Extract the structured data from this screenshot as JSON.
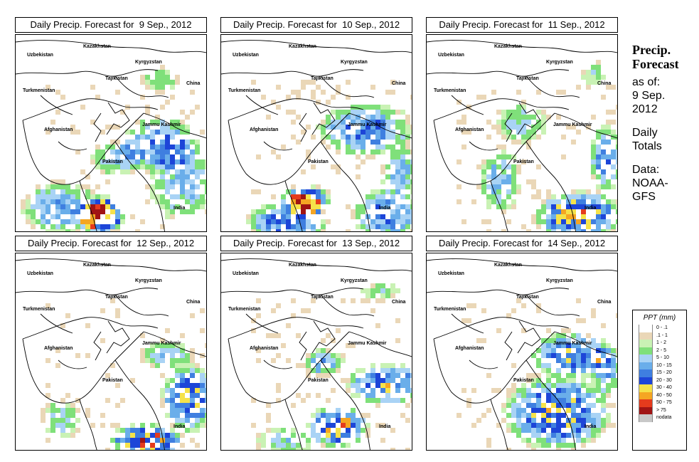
{
  "panels": [
    {
      "title": "Daily Precip. Forecast for  9 Sep., 2012"
    },
    {
      "title": "Daily Precip. Forecast for  10 Sep., 2012"
    },
    {
      "title": "Daily Precip. Forecast for  11 Sep., 2012"
    },
    {
      "title": "Daily Precip. Forecast for  12 Sep., 2012"
    },
    {
      "title": "Daily Precip. Forecast for  13 Sep., 2012"
    },
    {
      "title": "Daily Precip. Forecast for  14 Sep., 2012"
    }
  ],
  "map_labels": {
    "kazakhstan": "Kazakhstan",
    "uzbekistan": "Uzbekistan",
    "kyrgyzstan": "Kyrgyzstan",
    "tajikistan": "Tajikistan",
    "turkmenistan": "Turkmenistan",
    "china": "China",
    "afghanistan": "Afghanistan",
    "jammu_kashmir": "Jammu Kashmir",
    "pakistan": "Pakistan",
    "india": "India"
  },
  "side_info": {
    "title_line1": "Precip.",
    "title_line2": "Forecast",
    "asof_line1": "as of:",
    "asof_line2": "9 Sep.",
    "asof_line3": "2012",
    "totals_line1": "Daily",
    "totals_line2": "Totals",
    "data_line1": "Data:",
    "data_line2": "NOAA-",
    "data_line3": "GFS"
  },
  "legend": {
    "title": "PPT (mm)",
    "items": [
      {
        "label": "0 - .1",
        "color": "#ffffff"
      },
      {
        "label": ".1 - 1",
        "color": "#ead7b7"
      },
      {
        "label": "1 - 2",
        "color": "#c9f2b4"
      },
      {
        "label": "2 - 5",
        "color": "#7fe07a"
      },
      {
        "label": "5 - 10",
        "color": "#a9d3f5"
      },
      {
        "label": "10 - 15",
        "color": "#6aaeea"
      },
      {
        "label": "15 - 20",
        "color": "#3f7fe0"
      },
      {
        "label": "20 - 30",
        "color": "#1d45d8"
      },
      {
        "label": "30 - 40",
        "color": "#f5e24a"
      },
      {
        "label": "40 - 50",
        "color": "#f5a623"
      },
      {
        "label": "50 - 75",
        "color": "#e53b1d"
      },
      {
        "label": "> 75",
        "color": "#a01414"
      },
      {
        "label": "nodata",
        "color": "#c8c8c8"
      }
    ]
  }
}
